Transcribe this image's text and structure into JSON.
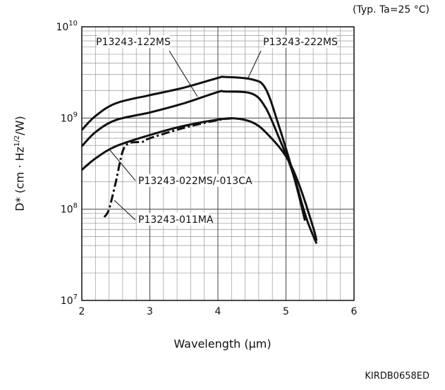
{
  "chart_data": {
    "type": "line",
    "condition": "(Typ. Ta=25 °C)",
    "xlabel": "Wavelength (μm)",
    "ylabel_parts": [
      "D* (cm · Hz",
      "1/2",
      "/W)"
    ],
    "xlim": [
      2,
      6
    ],
    "ylim": [
      10000000,
      10000000000
    ],
    "yscale": "log",
    "grid": true,
    "x_ticks": [
      "2",
      "3",
      "4",
      "5",
      "6"
    ],
    "y_ticks": [
      {
        "base": "10",
        "exp": "7",
        "value": 10000000
      },
      {
        "base": "10",
        "exp": "8",
        "value": 100000000
      },
      {
        "base": "10",
        "exp": "9",
        "value": 1000000000
      },
      {
        "base": "10",
        "exp": "10",
        "value": 10000000000
      }
    ],
    "series": [
      {
        "name": "P13243-222MS",
        "style": "solid",
        "points": [
          [
            2.0,
            740000000
          ],
          [
            2.2,
            1050000000
          ],
          [
            2.5,
            1450000000
          ],
          [
            3.0,
            1780000000
          ],
          [
            3.5,
            2150000000
          ],
          [
            4.0,
            2750000000
          ],
          [
            4.1,
            2820000000
          ],
          [
            4.5,
            2650000000
          ],
          [
            4.7,
            2100000000
          ],
          [
            4.9,
            800000000
          ],
          [
            5.1,
            260000000
          ],
          [
            5.3,
            80000000
          ],
          [
            5.45,
            42000000
          ]
        ]
      },
      {
        "name": "P13243-122MS",
        "style": "solid",
        "points": [
          [
            2.0,
            490000000
          ],
          [
            2.2,
            700000000
          ],
          [
            2.5,
            950000000
          ],
          [
            3.0,
            1150000000
          ],
          [
            3.5,
            1450000000
          ],
          [
            4.0,
            1930000000
          ],
          [
            4.1,
            1950000000
          ],
          [
            4.5,
            1850000000
          ],
          [
            4.7,
            1300000000
          ],
          [
            4.9,
            600000000
          ],
          [
            5.1,
            250000000
          ],
          [
            5.28,
            75000000
          ]
        ]
      },
      {
        "name": "P13243-022MS/-013CA",
        "style": "solid",
        "points": [
          [
            2.0,
            270000000
          ],
          [
            2.2,
            360000000
          ],
          [
            2.5,
            490000000
          ],
          [
            3.0,
            650000000
          ],
          [
            3.5,
            820000000
          ],
          [
            4.0,
            960000000
          ],
          [
            4.25,
            990000000
          ],
          [
            4.5,
            900000000
          ],
          [
            4.7,
            700000000
          ],
          [
            5.0,
            380000000
          ],
          [
            5.2,
            180000000
          ],
          [
            5.4,
            63000000
          ],
          [
            5.45,
            45000000
          ]
        ]
      },
      {
        "name": "P13243-011MA",
        "style": "dash-dot",
        "points": [
          [
            2.33,
            82000000
          ],
          [
            2.4,
            100000000
          ],
          [
            2.5,
            200000000
          ],
          [
            2.6,
            430000000
          ],
          [
            2.7,
            530000000
          ],
          [
            2.9,
            550000000
          ],
          [
            3.0,
            600000000
          ],
          [
            3.5,
            780000000
          ],
          [
            4.0,
            950000000
          ],
          [
            4.2,
            990000000
          ]
        ]
      }
    ],
    "annotations": [
      {
        "text": "P13243-122MS",
        "series": "P13243-122MS"
      },
      {
        "text": "P13243-222MS",
        "series": "P13243-222MS"
      },
      {
        "text": "P13243-022MS/-013CA",
        "series": "P13243-022MS/-013CA"
      },
      {
        "text": "P13243-011MA",
        "series": "P13243-011MA"
      }
    ],
    "document_id": "KIRDB0658ED"
  }
}
